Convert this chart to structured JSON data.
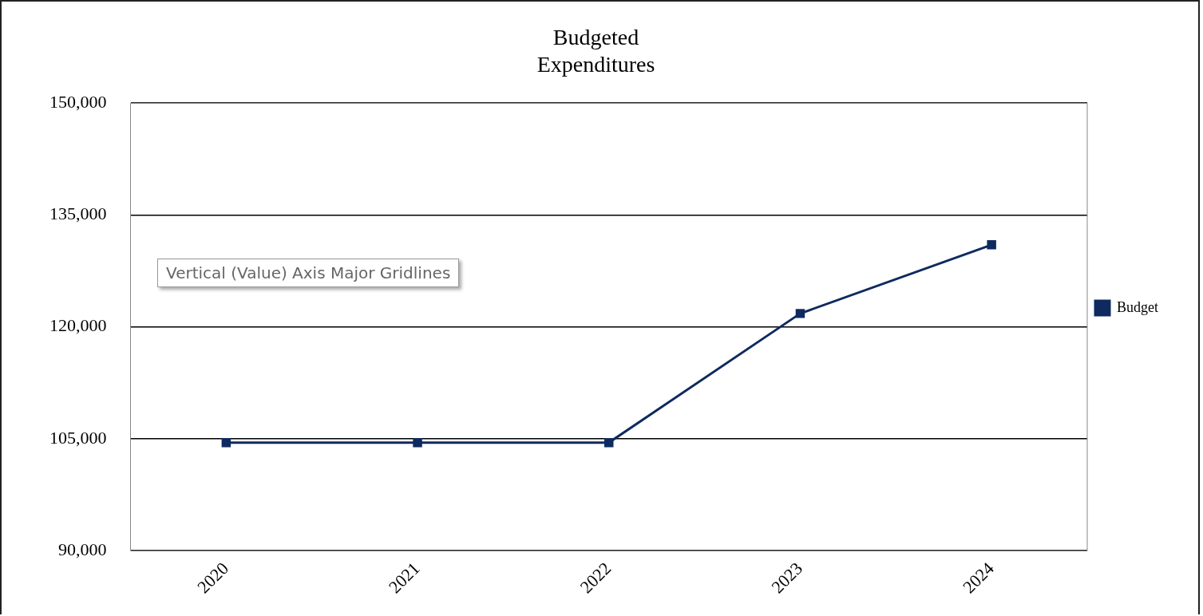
{
  "chart_data": {
    "type": "line",
    "title": "Budgeted\nExpenditures",
    "categories": [
      "2020",
      "2021",
      "2022",
      "2023",
      "2024"
    ],
    "series": [
      {
        "name": "Budget",
        "color": "#0e2a5f",
        "values": [
          104500,
          104500,
          104500,
          121800,
          131000
        ]
      }
    ],
    "ylim": [
      90000,
      150000
    ],
    "yticks": [
      {
        "value": 90000,
        "label": "90,000"
      },
      {
        "value": 105000,
        "label": "105,000"
      },
      {
        "value": 120000,
        "label": "120,000"
      },
      {
        "value": 135000,
        "label": "135,000"
      },
      {
        "value": 150000,
        "label": "150,000"
      }
    ],
    "grid": "y",
    "legend": "right",
    "marker": "square",
    "line_style": "solid",
    "annotations": [
      "Vertical (Value) Axis Major Gridlines"
    ]
  }
}
